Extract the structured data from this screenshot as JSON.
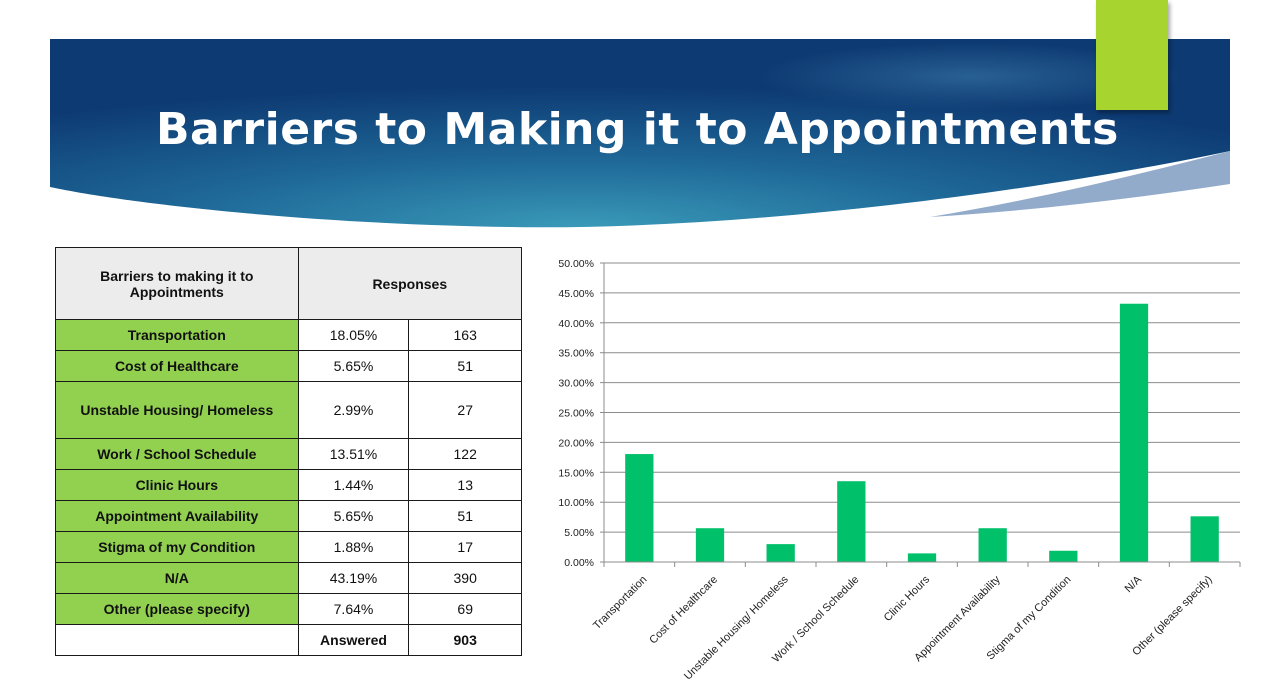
{
  "slide": {
    "title": "Barriers to Making it to Appointments"
  },
  "colors": {
    "banner_dark": "#0d3a72",
    "banner_light": "#2f8fb0",
    "accent": "#a8d42f",
    "category_cell": "#92d050",
    "bar": "#00c06a",
    "header_cell": "#ececec"
  },
  "table": {
    "header_category": "Barriers to making it to Appointments",
    "header_responses": "Responses",
    "rows": [
      {
        "label": "Transportation",
        "pct": "18.05%",
        "count": "163"
      },
      {
        "label": "Cost of Healthcare",
        "pct": "5.65%",
        "count": "51"
      },
      {
        "label": "Unstable Housing/ Homeless",
        "pct": "2.99%",
        "count": "27"
      },
      {
        "label": "Work / School Schedule",
        "pct": "13.51%",
        "count": "122"
      },
      {
        "label": "Clinic Hours",
        "pct": "1.44%",
        "count": "13"
      },
      {
        "label": "Appointment Availability",
        "pct": "5.65%",
        "count": "51"
      },
      {
        "label": "Stigma of my Condition",
        "pct": "1.88%",
        "count": "17"
      },
      {
        "label": "N/A",
        "pct": "43.19%",
        "count": "390"
      },
      {
        "label": "Other (please specify)",
        "pct": "7.64%",
        "count": "69"
      }
    ],
    "answered_label": "Answered",
    "answered_value": "903"
  },
  "chart_data": {
    "type": "bar",
    "title": "",
    "xlabel": "",
    "ylabel": "",
    "categories": [
      "Transportation",
      "Cost of Healthcare",
      "Unstable Housing/ Homeless",
      "Work / School Schedule",
      "Clinic Hours",
      "Appointment Availability",
      "Stigma of my Condition",
      "N/A",
      "Other (please specify)"
    ],
    "values": [
      18.05,
      5.65,
      2.99,
      13.51,
      1.44,
      5.65,
      1.88,
      43.19,
      7.64
    ],
    "ylim": [
      0,
      50
    ],
    "ytick_labels": [
      "0.00%",
      "5.00%",
      "10.00%",
      "15.00%",
      "20.00%",
      "25.00%",
      "30.00%",
      "35.00%",
      "40.00%",
      "45.00%",
      "50.00%"
    ],
    "grid": true,
    "legend": "none",
    "bar_color": "#00c06a"
  }
}
